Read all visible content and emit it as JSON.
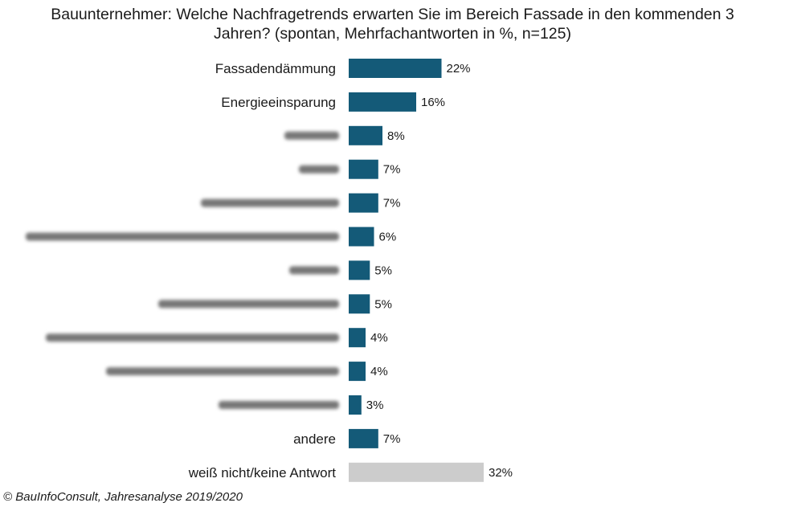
{
  "footer": "© BauInfoConsult, Jahresanalyse 2019/2020",
  "colors": {
    "bar": "#145a78",
    "bar_no_answer": "#cccccc"
  },
  "chart_data": {
    "type": "bar",
    "orientation": "horizontal",
    "title": "Bauunternehmer: Welche Nachfragetrends erwarten Sie im Bereich Fassade in den kommenden 3\nJahren? (spontan, Mehrfachantworten in %, n=125)",
    "categories": [
      "Fassadendämmung",
      "Energieeinsparung",
      "",
      "",
      "",
      "",
      "",
      "",
      "",
      "",
      "",
      "andere",
      "weiß nicht/keine Antwort"
    ],
    "category_blurred": [
      false,
      false,
      true,
      true,
      true,
      true,
      true,
      true,
      true,
      true,
      true,
      false,
      false
    ],
    "values": [
      22,
      16,
      8,
      7,
      7,
      6,
      5,
      5,
      4,
      4,
      3,
      7,
      32
    ],
    "value_labels": [
      "22%",
      "16%",
      "8%",
      "7%",
      "7%",
      "6%",
      "5%",
      "5%",
      "4%",
      "4%",
      "3%",
      "7%",
      "32%"
    ],
    "highlight_grey": [
      false,
      false,
      false,
      false,
      false,
      false,
      false,
      false,
      false,
      false,
      false,
      false,
      true
    ],
    "unit": "%",
    "xlim": [
      0,
      32
    ],
    "grid": false,
    "legend": "none"
  }
}
